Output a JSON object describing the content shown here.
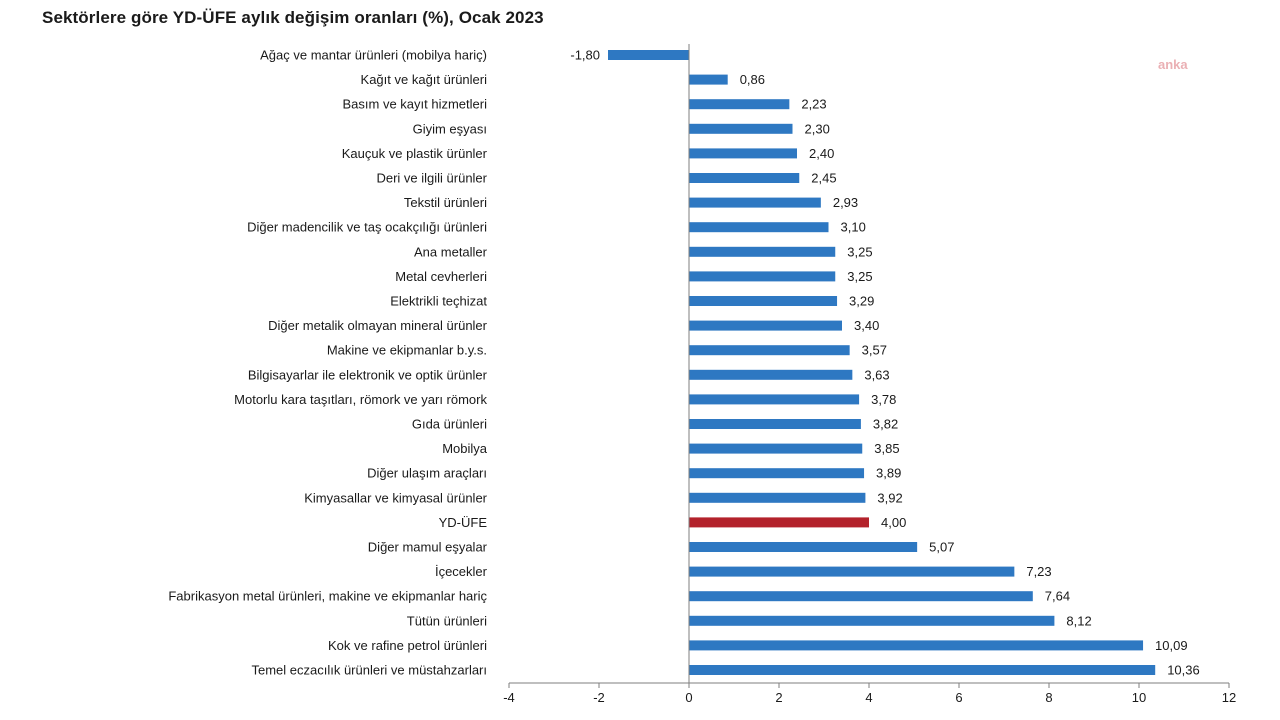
{
  "title": "Sektörlere göre YD-ÜFE aylık değişim oranları (%), Ocak 2023",
  "watermark": "anka",
  "chart_data": {
    "type": "bar",
    "orientation": "horizontal",
    "title": "Sektörlere göre YD-ÜFE aylık değişim oranları (%), Ocak 2023",
    "categories": [
      "Ağaç ve mantar ürünleri (mobilya hariç)",
      "Kağıt ve kağıt ürünleri",
      "Basım ve kayıt hizmetleri",
      "Giyim eşyası",
      "Kauçuk ve plastik ürünler",
      "Deri ve ilgili ürünler",
      "Tekstil ürünleri",
      "Diğer madencilik ve taş ocakçılığı ürünleri",
      "Ana metaller",
      "Metal cevherleri",
      "Elektrikli teçhizat",
      "Diğer metalik olmayan mineral ürünler",
      "Makine ve ekipmanlar b.y.s.",
      "Bilgisayarlar ile elektronik ve optik ürünler",
      "Motorlu kara taşıtları, römork ve yarı römork",
      "Gıda ürünleri",
      "Mobilya",
      "Diğer ulaşım araçları",
      "Kimyasallar ve kimyasal ürünler",
      "YD-ÜFE",
      "Diğer mamul eşyalar",
      "İçecekler",
      "Fabrikasyon metal ürünleri, makine ve ekipmanlar hariç",
      "Tütün ürünleri",
      "Kok ve rafine petrol ürünleri",
      "Temel eczacılık ürünleri ve müstahzarları"
    ],
    "values": [
      -1.8,
      0.86,
      2.23,
      2.3,
      2.4,
      2.45,
      2.93,
      3.1,
      3.25,
      3.25,
      3.29,
      3.4,
      3.57,
      3.63,
      3.78,
      3.82,
      3.85,
      3.89,
      3.92,
      4.0,
      5.07,
      7.23,
      7.64,
      8.12,
      10.09,
      10.36
    ],
    "value_labels": [
      "-1,80",
      "0,86",
      "2,23",
      "2,30",
      "2,40",
      "2,45",
      "2,93",
      "3,10",
      "3,25",
      "3,25",
      "3,29",
      "3,40",
      "3,57",
      "3,63",
      "3,78",
      "3,82",
      "3,85",
      "3,89",
      "3,92",
      "4,00",
      "5,07",
      "7,23",
      "7,64",
      "8,12",
      "10,09",
      "10,36"
    ],
    "highlight_category": "YD-ÜFE",
    "xlim": [
      -4,
      12
    ],
    "xticks": [
      -4,
      -2,
      0,
      2,
      4,
      6,
      8,
      10,
      12
    ],
    "grid": false,
    "colors": {
      "bar": "#2e78c2",
      "highlight": "#b3222b",
      "axis": "#7f7f7f"
    }
  }
}
